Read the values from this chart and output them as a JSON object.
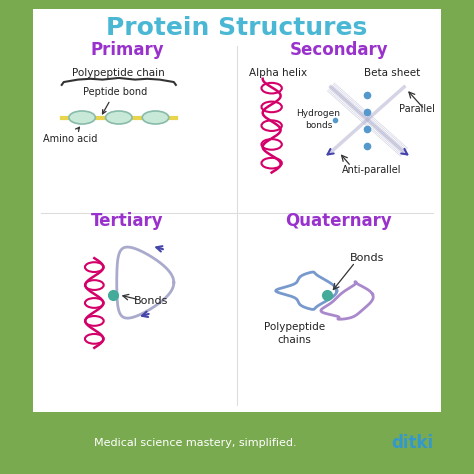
{
  "title": "Protein Structures",
  "title_color": "#4ab8d4",
  "title_fontsize": 18,
  "background_outer": "#7aaa50",
  "background_inner": "#ffffff",
  "footer_text": "Medical science mastery, simplified.",
  "footer_logo": "ditki",
  "section_title_color": "#9932cc",
  "section_title_color_tertiary": "#cc44aa",
  "magenta": "#d4006a",
  "purple": "#4444aa",
  "light_purple": "#aaaacc",
  "teal": "#44aa99",
  "blue_dots": "#5599cc",
  "yellow": "#e8d44d",
  "light_green_ellipse": "#c8e8d8",
  "light_green_ellipse_edge": "#88bbaa"
}
